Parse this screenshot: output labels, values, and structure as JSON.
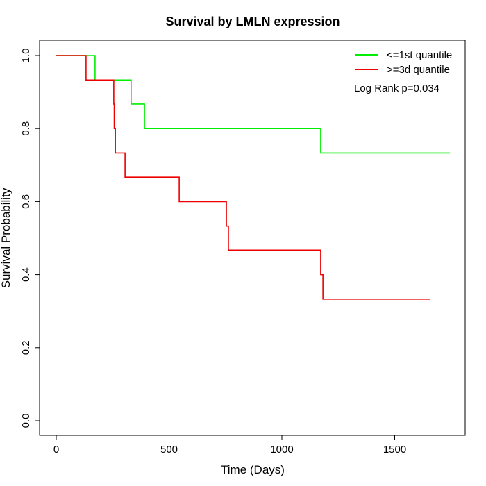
{
  "chart_data": {
    "type": "line",
    "title": "Survival by LMLN expression",
    "xlabel": "Time (Days)",
    "ylabel": "Survival Probability",
    "xlim": [
      0,
      1800
    ],
    "ylim": [
      0,
      1
    ],
    "x_ticks": [
      0,
      500,
      1000,
      1500
    ],
    "x_tick_labels": [
      "0",
      "500",
      "1000",
      "1500"
    ],
    "y_ticks": [
      0,
      0.2,
      0.4,
      0.6,
      0.8,
      1.0
    ],
    "y_tick_labels": [
      "0.0",
      "0.2",
      "0.4",
      "0.6",
      "0.8",
      "1.0"
    ],
    "legend_position": "top-right",
    "annotation": "Log Rank p=0.034",
    "series": [
      {
        "name": "<=1st quantile",
        "color": "#00ee00",
        "steps": [
          [
            0,
            1.0
          ],
          [
            172,
            0.933
          ],
          [
            332,
            0.867
          ],
          [
            391,
            0.8
          ],
          [
            1172,
            0.733
          ]
        ],
        "end": 1745
      },
      {
        "name": ">=3d quantile",
        "color": "#ee0000",
        "steps": [
          [
            0,
            1.0
          ],
          [
            132,
            0.933
          ],
          [
            255,
            0.867
          ],
          [
            257,
            0.8
          ],
          [
            262,
            0.733
          ],
          [
            305,
            0.667
          ],
          [
            545,
            0.6
          ],
          [
            754,
            0.533
          ],
          [
            763,
            0.467
          ],
          [
            1172,
            0.4
          ],
          [
            1182,
            0.333
          ]
        ],
        "end": 1655
      }
    ]
  }
}
